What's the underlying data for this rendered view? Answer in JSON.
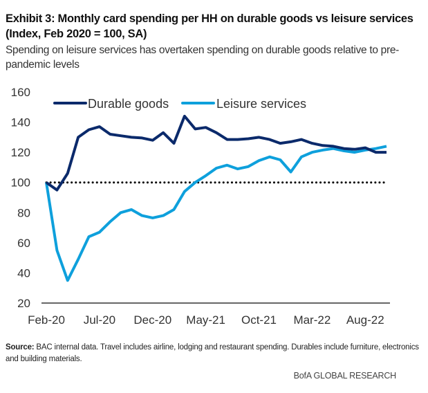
{
  "header": {
    "title": "Exhibit 3: Monthly card spending per HH on durable goods vs leisure services (Index, Feb 2020 = 100, SA)",
    "subtitle": "Spending on leisure services has overtaken spending on durable goods relative to pre-pandemic levels"
  },
  "footer": {
    "source_label": "Source:",
    "source_text": "BAC internal data. Travel includes airline, lodging and restaurant spending.  Durables include furniture, electronics and building materials.",
    "brand": "BofA GLOBAL RESEARCH"
  },
  "chart_data": {
    "type": "line",
    "title": "Exhibit 3: Monthly card spending per HH on durable goods vs leisure services (Index, Feb 2020 = 100, SA)",
    "xlabel": "",
    "ylabel": "",
    "ylim": [
      20,
      160
    ],
    "yticks": [
      20,
      40,
      60,
      80,
      100,
      120,
      140,
      160
    ],
    "x": [
      "Feb-20",
      "Mar-20",
      "Apr-20",
      "May-20",
      "Jun-20",
      "Jul-20",
      "Aug-20",
      "Sep-20",
      "Oct-20",
      "Nov-20",
      "Dec-20",
      "Jan-21",
      "Feb-21",
      "Mar-21",
      "Apr-21",
      "May-21",
      "Jun-21",
      "Jul-21",
      "Aug-21",
      "Sep-21",
      "Oct-21",
      "Nov-21",
      "Dec-21",
      "Jan-22",
      "Feb-22",
      "Mar-22",
      "Apr-22",
      "May-22",
      "Jun-22",
      "Jul-22",
      "Aug-22",
      "Sep-22",
      "Oct-22"
    ],
    "xtick_labels": [
      "Feb-20",
      "Jul-20",
      "Dec-20",
      "May-21",
      "Oct-21",
      "Mar-22",
      "Aug-22"
    ],
    "reference_line": {
      "value": 100,
      "style": "dotted",
      "color": "#000000"
    },
    "grid": false,
    "legend_position": "top",
    "series": [
      {
        "name": "Durable goods",
        "color": "#0b2a6b",
        "values": [
          100,
          95,
          106,
          130,
          135,
          137,
          132,
          131,
          130,
          129.5,
          128,
          133,
          126,
          144,
          135.5,
          136.5,
          133,
          128.5,
          128.5,
          129,
          130,
          128.5,
          126,
          127,
          128.5,
          126,
          124.5,
          124,
          122.5,
          122,
          123,
          120,
          120
        ]
      },
      {
        "name": "Leisure services",
        "color": "#0ea0dc",
        "values": [
          100,
          55,
          35,
          49,
          64,
          67,
          74,
          80,
          82,
          78,
          76.5,
          78,
          82,
          94,
          100,
          104.5,
          109.5,
          111.5,
          109,
          110.5,
          114.5,
          117,
          115,
          107,
          117,
          120,
          121.5,
          122.5,
          121,
          120,
          121.5,
          122.5,
          124
        ]
      }
    ]
  }
}
